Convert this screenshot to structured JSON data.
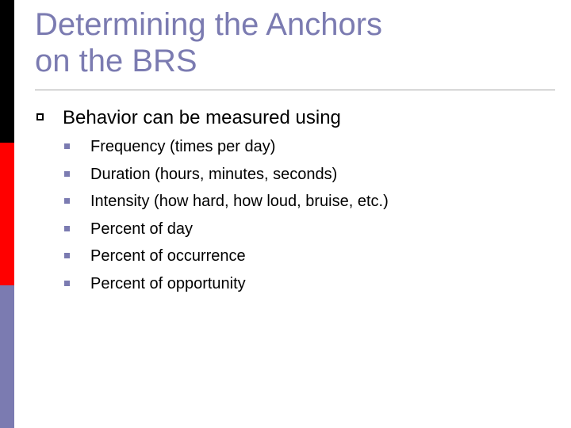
{
  "slide": {
    "title_line1": "Determining the Anchors",
    "title_line2": "on the BRS",
    "bullet": "Behavior can be measured using",
    "sub_bullets": [
      "Frequency (times per day)",
      "Duration (hours, minutes, seconds)",
      "Intensity (how hard, how loud, bruise, etc.)",
      "Percent of day",
      "Percent of occurrence",
      "Percent of opportunity"
    ]
  },
  "colors": {
    "title": "#7b7bb1",
    "accent_bar_top": "#000000",
    "accent_bar_middle": "#ff0000",
    "accent_bar_bottom": "#7b7bb1",
    "sub_bullet_marker": "#7b7bb1"
  }
}
